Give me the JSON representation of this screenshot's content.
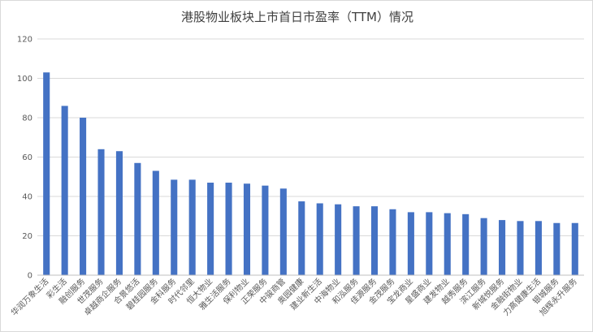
{
  "chart_data": {
    "type": "bar",
    "title": "港股物业板块上市首日市盈率（TTM）情况",
    "xlabel": "",
    "ylabel": "",
    "ylim": [
      0,
      120
    ],
    "yticks": [
      0,
      20,
      40,
      60,
      80,
      100,
      120
    ],
    "grid": true,
    "legend": "none",
    "bar_color": "#4472c4",
    "categories": [
      "华润万象生活",
      "彩生活",
      "融创服务",
      "世茂服务",
      "卓越商企服务",
      "合景悠活",
      "碧桂园服务",
      "金科服务",
      "时代邻里",
      "恒大物业",
      "雅生活服务",
      "保利物业",
      "正荣服务",
      "中骏商管",
      "奥园健康",
      "建业新生活",
      "中海物业",
      "和泓服务",
      "佳源服务",
      "金茂服务",
      "宝龙商业",
      "星盛商业",
      "建发物业",
      "越秀服务",
      "滨江服务",
      "新城悦服务",
      "金融街物业",
      "力高健康生活",
      "银城服务",
      "旭辉永升服务"
    ],
    "values": [
      103,
      86,
      80,
      64,
      63,
      57,
      53,
      48.5,
      48.5,
      47,
      47,
      46.5,
      45.5,
      44,
      37.5,
      36.5,
      36,
      35,
      35,
      33.5,
      32,
      32,
      31.5,
      31,
      29,
      28,
      27.5,
      27.5,
      26.5,
      26.5
    ]
  }
}
